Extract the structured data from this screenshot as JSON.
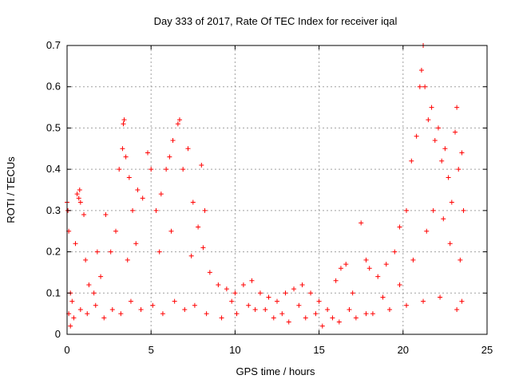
{
  "chart_data": {
    "type": "scatter",
    "title": "Day 333 of 2017, Rate Of TEC Index for receiver iqal",
    "xlabel": "GPS time / hours",
    "ylabel": "ROTI / TECUs",
    "xlim": [
      0,
      25
    ],
    "ylim": [
      0,
      0.7
    ],
    "xticks": [
      0,
      5,
      10,
      15,
      20,
      25
    ],
    "yticks": [
      0,
      0.1,
      0.2,
      0.3,
      0.4,
      0.5,
      0.6,
      0.7
    ],
    "ytick_labels": [
      "0",
      "0.1",
      "0.2",
      "0.3",
      "0.4",
      "0.5",
      "0.6",
      "0.7"
    ],
    "grid": true,
    "marker": "+",
    "color": "#ff0000",
    "series": [
      {
        "points": [
          [
            0.0,
            0.32
          ],
          [
            0.05,
            0.3
          ],
          [
            0.1,
            0.25
          ],
          [
            0.2,
            0.1
          ],
          [
            0.3,
            0.08
          ],
          [
            0.5,
            0.22
          ],
          [
            0.6,
            0.34
          ],
          [
            0.7,
            0.33
          ],
          [
            0.75,
            0.35
          ],
          [
            0.8,
            0.32
          ],
          [
            1.0,
            0.29
          ],
          [
            1.1,
            0.18
          ],
          [
            1.3,
            0.12
          ],
          [
            1.6,
            0.1
          ],
          [
            1.8,
            0.2
          ],
          [
            2.0,
            0.14
          ],
          [
            2.3,
            0.29
          ],
          [
            2.6,
            0.2
          ],
          [
            2.9,
            0.25
          ],
          [
            3.1,
            0.4
          ],
          [
            3.3,
            0.45
          ],
          [
            3.35,
            0.51
          ],
          [
            3.4,
            0.52
          ],
          [
            3.5,
            0.43
          ],
          [
            3.7,
            0.38
          ],
          [
            3.9,
            0.3
          ],
          [
            4.2,
            0.35
          ],
          [
            4.5,
            0.33
          ],
          [
            4.8,
            0.44
          ],
          [
            5.0,
            0.4
          ],
          [
            5.3,
            0.3
          ],
          [
            5.6,
            0.34
          ],
          [
            5.9,
            0.4
          ],
          [
            6.1,
            0.43
          ],
          [
            6.3,
            0.47
          ],
          [
            6.6,
            0.51
          ],
          [
            6.7,
            0.52
          ],
          [
            6.9,
            0.4
          ],
          [
            7.2,
            0.45
          ],
          [
            7.5,
            0.32
          ],
          [
            7.8,
            0.26
          ],
          [
            8.0,
            0.41
          ],
          [
            8.2,
            0.3
          ],
          [
            8.5,
            0.15
          ],
          [
            9.0,
            0.12
          ],
          [
            9.5,
            0.11
          ],
          [
            10.0,
            0.1
          ],
          [
            10.5,
            0.12
          ],
          [
            11.0,
            0.13
          ],
          [
            11.5,
            0.1
          ],
          [
            12.0,
            0.09
          ],
          [
            12.5,
            0.08
          ],
          [
            13.0,
            0.1
          ],
          [
            13.5,
            0.11
          ],
          [
            14.0,
            0.12
          ],
          [
            14.5,
            0.1
          ],
          [
            15.0,
            0.08
          ],
          [
            15.5,
            0.06
          ],
          [
            16.0,
            0.13
          ],
          [
            16.3,
            0.16
          ],
          [
            16.6,
            0.17
          ],
          [
            17.0,
            0.1
          ],
          [
            17.5,
            0.27
          ],
          [
            17.8,
            0.18
          ],
          [
            18.0,
            0.16
          ],
          [
            18.5,
            0.14
          ],
          [
            19.0,
            0.17
          ],
          [
            19.5,
            0.2
          ],
          [
            19.8,
            0.26
          ],
          [
            20.2,
            0.3
          ],
          [
            20.5,
            0.42
          ],
          [
            20.8,
            0.48
          ],
          [
            21.0,
            0.6
          ],
          [
            21.1,
            0.64
          ],
          [
            21.2,
            0.7
          ],
          [
            21.3,
            0.6
          ],
          [
            21.5,
            0.52
          ],
          [
            21.7,
            0.55
          ],
          [
            21.9,
            0.47
          ],
          [
            22.1,
            0.5
          ],
          [
            22.3,
            0.42
          ],
          [
            22.5,
            0.45
          ],
          [
            22.7,
            0.38
          ],
          [
            22.9,
            0.32
          ],
          [
            23.1,
            0.49
          ],
          [
            23.2,
            0.55
          ],
          [
            23.3,
            0.4
          ],
          [
            23.5,
            0.44
          ],
          [
            23.6,
            0.3
          ],
          [
            0.1,
            0.05
          ],
          [
            0.4,
            0.04
          ],
          [
            0.8,
            0.06
          ],
          [
            1.2,
            0.05
          ],
          [
            1.7,
            0.07
          ],
          [
            2.2,
            0.04
          ],
          [
            2.7,
            0.06
          ],
          [
            3.2,
            0.05
          ],
          [
            3.8,
            0.08
          ],
          [
            4.4,
            0.06
          ],
          [
            5.1,
            0.07
          ],
          [
            5.7,
            0.05
          ],
          [
            6.4,
            0.08
          ],
          [
            7.0,
            0.06
          ],
          [
            7.6,
            0.07
          ],
          [
            8.3,
            0.05
          ],
          [
            9.2,
            0.04
          ],
          [
            10.1,
            0.05
          ],
          [
            11.2,
            0.06
          ],
          [
            12.3,
            0.04
          ],
          [
            13.2,
            0.03
          ],
          [
            14.2,
            0.04
          ],
          [
            15.2,
            0.02
          ],
          [
            16.2,
            0.03
          ],
          [
            17.2,
            0.04
          ],
          [
            18.2,
            0.05
          ],
          [
            19.2,
            0.06
          ],
          [
            20.2,
            0.07
          ],
          [
            21.2,
            0.08
          ],
          [
            22.2,
            0.09
          ],
          [
            23.2,
            0.06
          ],
          [
            23.5,
            0.08
          ],
          [
            0.2,
            0.02
          ],
          [
            3.6,
            0.18
          ],
          [
            4.1,
            0.22
          ],
          [
            5.5,
            0.2
          ],
          [
            6.2,
            0.25
          ],
          [
            7.4,
            0.19
          ],
          [
            8.1,
            0.21
          ],
          [
            9.8,
            0.08
          ],
          [
            10.8,
            0.07
          ],
          [
            11.8,
            0.06
          ],
          [
            12.8,
            0.05
          ],
          [
            13.8,
            0.07
          ],
          [
            14.8,
            0.05
          ],
          [
            15.8,
            0.04
          ],
          [
            16.8,
            0.06
          ],
          [
            17.8,
            0.05
          ],
          [
            18.8,
            0.09
          ],
          [
            19.8,
            0.12
          ],
          [
            20.6,
            0.18
          ],
          [
            21.4,
            0.25
          ],
          [
            21.8,
            0.3
          ],
          [
            22.4,
            0.28
          ],
          [
            22.8,
            0.22
          ],
          [
            23.4,
            0.18
          ]
        ]
      }
    ]
  }
}
